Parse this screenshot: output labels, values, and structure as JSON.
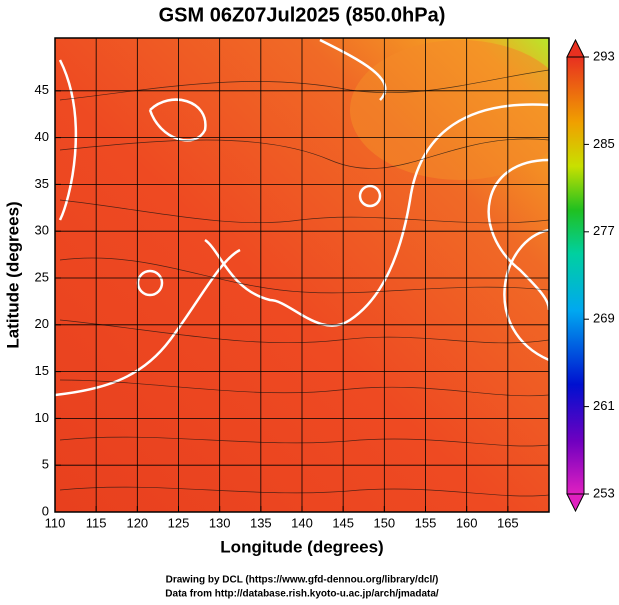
{
  "chart_data": {
    "type": "map",
    "title": "GSM 06Z07Jul2025 (850.0hPa)",
    "x_label": "Longitude (degrees)",
    "y_label": "Latitude (degrees)",
    "xlim": [
      110,
      170
    ],
    "xticks": [
      110,
      115,
      120,
      125,
      130,
      135,
      140,
      145,
      150,
      155,
      160,
      165
    ],
    "ylim": [
      0,
      50
    ],
    "yticks": [
      0,
      5,
      10,
      15,
      20,
      25,
      30,
      35,
      40,
      45
    ],
    "grid": true,
    "colorbar": {
      "lim": [
        253,
        293
      ],
      "ticks": [
        253,
        261,
        269,
        277,
        285,
        293
      ]
    },
    "footer": [
      "Drawing by DCL (https://www.gfd-dennou.org/library/dcl/)",
      "Data from http://database.rish.kyoto-u.ac.jp/arch/jmadata/"
    ]
  }
}
